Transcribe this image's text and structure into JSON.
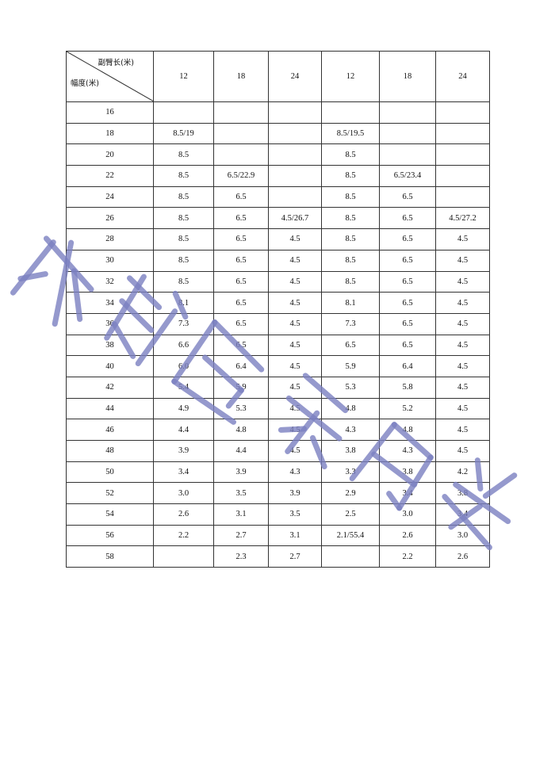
{
  "table": {
    "corner": {
      "column_header": "副臂长(米)",
      "row_header": "幅度(米)"
    },
    "columns": [
      "12",
      "18",
      "24",
      "12",
      "18",
      "24"
    ],
    "rows": [
      {
        "r": "16",
        "v": [
          "",
          "",
          "",
          "",
          "",
          ""
        ]
      },
      {
        "r": "18",
        "v": [
          "8.5/19",
          "",
          "",
          "8.5/19.5",
          "",
          ""
        ]
      },
      {
        "r": "20",
        "v": [
          "8.5",
          "",
          "",
          "8.5",
          "",
          ""
        ]
      },
      {
        "r": "22",
        "v": [
          "8.5",
          "6.5/22.9",
          "",
          "8.5",
          "6.5/23.4",
          ""
        ]
      },
      {
        "r": "24",
        "v": [
          "8.5",
          "6.5",
          "",
          "8.5",
          "6.5",
          ""
        ]
      },
      {
        "r": "26",
        "v": [
          "8.5",
          "6.5",
          "4.5/26.7",
          "8.5",
          "6.5",
          "4.5/27.2"
        ]
      },
      {
        "r": "28",
        "v": [
          "8.5",
          "6.5",
          "4.5",
          "8.5",
          "6.5",
          "4.5"
        ]
      },
      {
        "r": "30",
        "v": [
          "8.5",
          "6.5",
          "4.5",
          "8.5",
          "6.5",
          "4.5"
        ]
      },
      {
        "r": "32",
        "v": [
          "8.5",
          "6.5",
          "4.5",
          "8.5",
          "6.5",
          "4.5"
        ]
      },
      {
        "r": "34",
        "v": [
          "8.1",
          "6.5",
          "4.5",
          "8.1",
          "6.5",
          "4.5"
        ]
      },
      {
        "r": "36",
        "v": [
          "7.3",
          "6.5",
          "4.5",
          "7.3",
          "6.5",
          "4.5"
        ]
      },
      {
        "r": "38",
        "v": [
          "6.6",
          "6.5",
          "4.5",
          "6.5",
          "6.5",
          "4.5"
        ]
      },
      {
        "r": "40",
        "v": [
          "6.0",
          "6.4",
          "4.5",
          "5.9",
          "6.4",
          "4.5"
        ]
      },
      {
        "r": "42",
        "v": [
          "5.4",
          "5.9",
          "4.5",
          "5.3",
          "5.8",
          "4.5"
        ]
      },
      {
        "r": "44",
        "v": [
          "4.9",
          "5.3",
          "4.5",
          "4.8",
          "5.2",
          "4.5"
        ]
      },
      {
        "r": "46",
        "v": [
          "4.4",
          "4.8",
          "4.5",
          "4.3",
          "4.8",
          "4.5"
        ]
      },
      {
        "r": "48",
        "v": [
          "3.9",
          "4.4",
          "4.5",
          "3.8",
          "4.3",
          "4.5"
        ]
      },
      {
        "r": "50",
        "v": [
          "3.4",
          "3.9",
          "4.3",
          "3.3",
          "3.8",
          "4.2"
        ]
      },
      {
        "r": "52",
        "v": [
          "3.0",
          "3.5",
          "3.9",
          "2.9",
          "3.4",
          "3.8"
        ]
      },
      {
        "r": "54",
        "v": [
          "2.6",
          "3.1",
          "3.5",
          "2.5",
          "3.0",
          "3.4"
        ]
      },
      {
        "r": "56",
        "v": [
          "2.2",
          "2.7",
          "3.1",
          "2.1/55.4",
          "2.6",
          "3.0"
        ]
      },
      {
        "r": "58",
        "v": [
          "",
          "2.3",
          "2.7",
          "",
          "2.2",
          "2.6"
        ]
      }
    ]
  },
  "watermark": {
    "text": "成都巨象吊装",
    "color": "#7b7fc0"
  }
}
